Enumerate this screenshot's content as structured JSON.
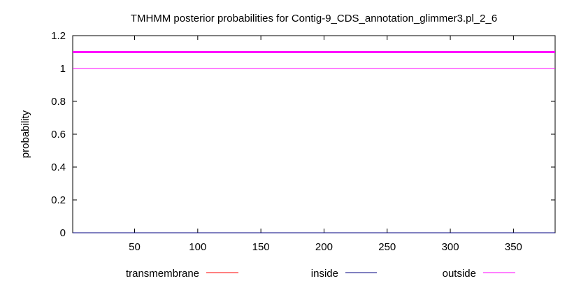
{
  "chart_data": {
    "type": "line",
    "title": "TMHMM posterior probabilities for Contig-9_CDS_annotation_glimmer3.pl_2_6",
    "ylabel": "probability",
    "xlabel": "",
    "xlim": [
      1,
      383
    ],
    "ylim": [
      0,
      1.2
    ],
    "x_ticks": [
      50,
      100,
      150,
      200,
      250,
      300,
      350
    ],
    "y_ticks": [
      0,
      0.2,
      0.4,
      0.6,
      0.8,
      1,
      1.2
    ],
    "y_tick_labels": [
      "0",
      "0.2",
      "0.4",
      "0.6",
      "0.8",
      "1",
      "1.2"
    ],
    "grid": false,
    "legend_position": "bottom",
    "series": [
      {
        "name": "transmembrane",
        "color": "#ff0000",
        "x": [
          1,
          383
        ],
        "values": [
          0,
          0
        ]
      },
      {
        "name": "inside",
        "color": "#000080",
        "x": [
          1,
          383
        ],
        "values": [
          0,
          0
        ]
      },
      {
        "name": "outside",
        "color": "#ff00ff",
        "x": [
          1,
          383
        ],
        "values": [
          1,
          1
        ]
      }
    ],
    "annotations": [
      {
        "label": "outside region",
        "color": "#ff00ff",
        "y": 1.1,
        "x": [
          1,
          383
        ]
      }
    ]
  }
}
